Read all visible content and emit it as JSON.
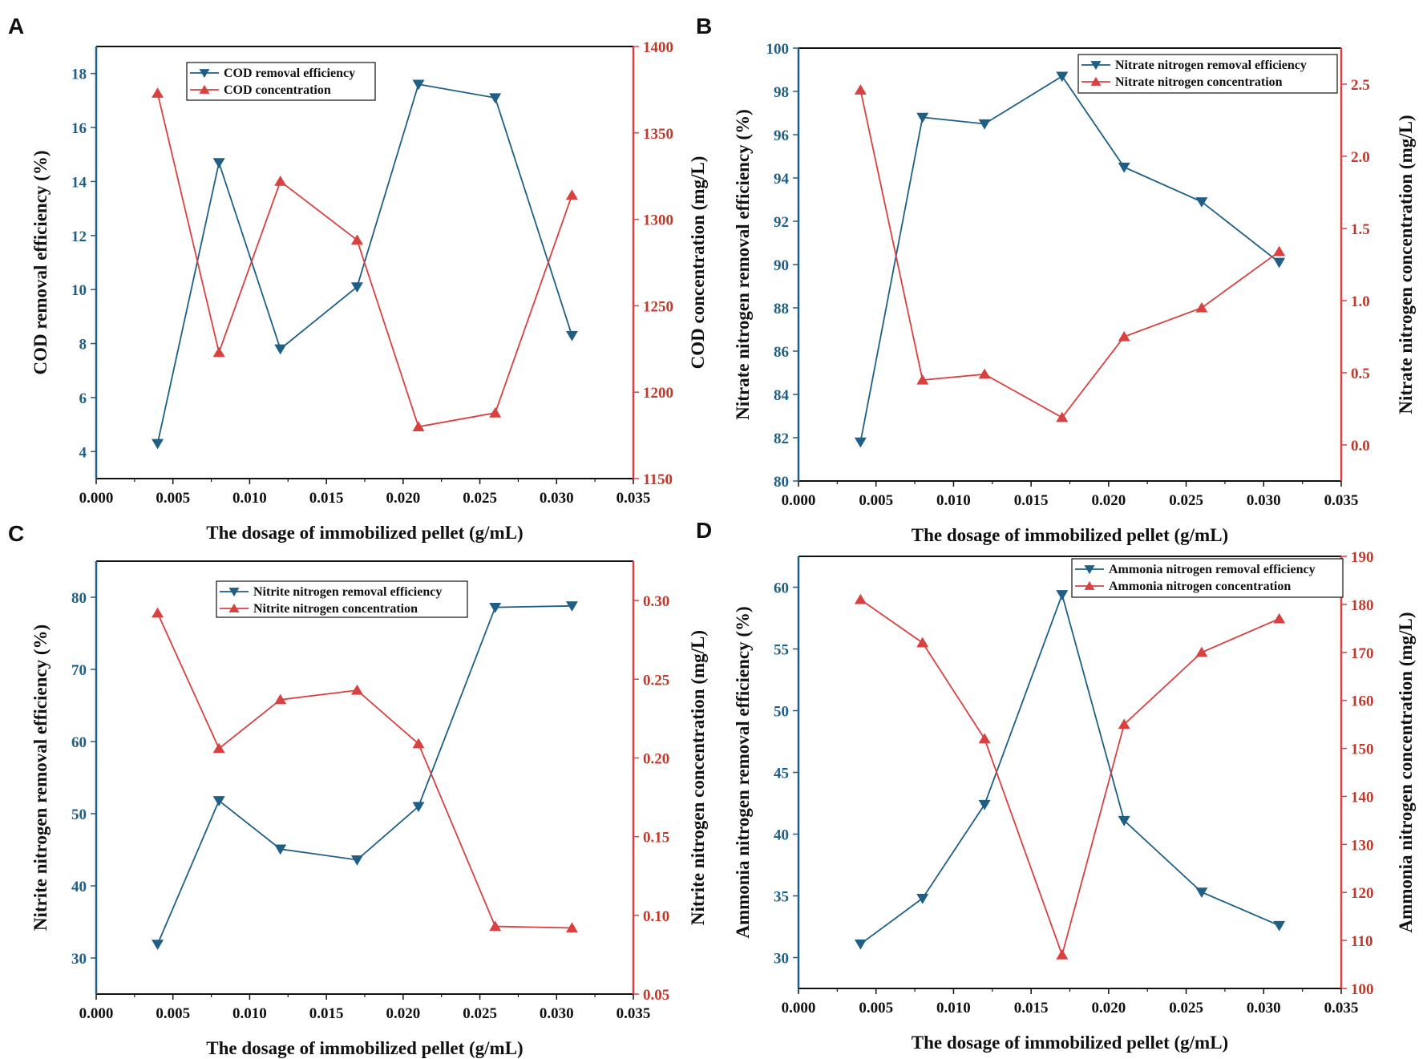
{
  "figure": {
    "colors": {
      "left": "#1f5f86",
      "right": "#d94040",
      "frame": "#111111"
    }
  },
  "chart_data": [
    {
      "panel": "A",
      "type": "line",
      "xlabel": "The dosage of immobilized pellet (g/mL)",
      "ylabel_left": "COD removal efficiency (%)",
      "ylabel_right": "COD concentration (mg/L)",
      "xlim": [
        0,
        0.035
      ],
      "xticks": [
        "0.000",
        "0.005",
        "0.010",
        "0.015",
        "0.020",
        "0.025",
        "0.030",
        "0.035"
      ],
      "ylim_left": [
        3,
        19
      ],
      "yticks_left": [
        "4",
        "6",
        "8",
        "10",
        "12",
        "14",
        "16",
        "18"
      ],
      "ylim_right": [
        1150,
        1400
      ],
      "yticks_right": [
        "1150",
        "1200",
        "1250",
        "1300",
        "1350",
        "1400"
      ],
      "x": [
        0.004,
        0.008,
        0.012,
        0.017,
        0.021,
        0.026,
        0.031
      ],
      "series": [
        {
          "name": "COD removal efficiency",
          "axis": "left",
          "marker": "triangle-down",
          "values": [
            4.3,
            14.7,
            7.8,
            10.1,
            17.6,
            17.1,
            8.3
          ]
        },
        {
          "name": "COD concentration",
          "axis": "right",
          "marker": "triangle-up",
          "values": [
            1373,
            1223,
            1322,
            1288,
            1180,
            1188,
            1314
          ]
        }
      ],
      "legend_position": "top-left"
    },
    {
      "panel": "B",
      "type": "line",
      "xlabel": "The dosage of immobilized pellet (g/mL)",
      "ylabel_left": "Nitrate nitrogen removal efficiency (%)",
      "ylabel_right": "Nitrate nitrogen concentration (mg/L)",
      "xlim": [
        0,
        0.035
      ],
      "xticks": [
        "0.000",
        "0.005",
        "0.010",
        "0.015",
        "0.020",
        "0.025",
        "0.030",
        "0.035"
      ],
      "ylim_left": [
        80,
        100
      ],
      "yticks_left": [
        "80",
        "82",
        "84",
        "86",
        "88",
        "90",
        "92",
        "94",
        "96",
        "98",
        "100"
      ],
      "ylim_right": [
        -0.25,
        2.75
      ],
      "yticks_right": [
        "0.0",
        "0.5",
        "1.0",
        "1.5",
        "2.0",
        "2.5"
      ],
      "x": [
        0.004,
        0.008,
        0.012,
        0.017,
        0.021,
        0.026,
        0.031
      ],
      "series": [
        {
          "name": "Nitrate nitrogen removal efficiency",
          "axis": "left",
          "marker": "triangle-down",
          "values": [
            81.8,
            96.8,
            96.5,
            98.7,
            94.5,
            92.9,
            90.1
          ]
        },
        {
          "name": "Nitrate nitrogen concentration",
          "axis": "right",
          "marker": "triangle-up",
          "values": [
            2.46,
            0.45,
            0.49,
            0.19,
            0.75,
            0.95,
            1.34
          ]
        }
      ],
      "legend_position": "top-right"
    },
    {
      "panel": "C",
      "type": "line",
      "xlabel": "The dosage of immobilized pellet (g/mL)",
      "ylabel_left": "Nitrite nitrogen removal efficiency (%)",
      "ylabel_right": "Nitrite nitrogen concentration (mg/L)",
      "xlim": [
        0,
        0.035
      ],
      "xticks": [
        "0.000",
        "0.005",
        "0.010",
        "0.015",
        "0.020",
        "0.025",
        "0.030",
        "0.035"
      ],
      "ylim_left": [
        25,
        85
      ],
      "yticks_left": [
        "30",
        "40",
        "50",
        "60",
        "70",
        "80"
      ],
      "ylim_right": [
        0.05,
        0.325
      ],
      "yticks_right": [
        "0.05",
        "0.10",
        "0.15",
        "0.20",
        "0.25",
        "0.30"
      ],
      "x": [
        0.004,
        0.008,
        0.012,
        0.017,
        0.021,
        0.026,
        0.031
      ],
      "series": [
        {
          "name": "Nitrite nitrogen removal efficiency",
          "axis": "left",
          "marker": "triangle-down",
          "values": [
            31.9,
            51.8,
            45.1,
            43.6,
            51.0,
            78.6,
            78.8
          ]
        },
        {
          "name": "Nitrite nitrogen concentration",
          "axis": "right",
          "marker": "triangle-up",
          "values": [
            0.292,
            0.206,
            0.237,
            0.243,
            0.209,
            0.093,
            0.092
          ]
        }
      ],
      "legend_position": "top-center"
    },
    {
      "panel": "D",
      "type": "line",
      "xlabel": "The dosage of immobilized pellet (g/mL)",
      "ylabel_left": "Ammonia nitrogen removal efficiency (%)",
      "ylabel_right": "Ammonia nitrogen concentration (mg/L)",
      "xlim": [
        0,
        0.035
      ],
      "xticks": [
        "0.000",
        "0.005",
        "0.010",
        "0.015",
        "0.020",
        "0.025",
        "0.030",
        "0.035"
      ],
      "ylim_left": [
        27.5,
        62.5
      ],
      "yticks_left": [
        "30",
        "35",
        "40",
        "45",
        "50",
        "55",
        "60"
      ],
      "ylim_right": [
        100,
        190
      ],
      "yticks_right": [
        "100",
        "110",
        "120",
        "130",
        "140",
        "150",
        "160",
        "170",
        "180",
        "190"
      ],
      "x": [
        0.004,
        0.008,
        0.012,
        0.017,
        0.021,
        0.026,
        0.031
      ],
      "series": [
        {
          "name": "Ammonia nitrogen removal efficiency",
          "axis": "left",
          "marker": "triangle-down",
          "values": [
            31.1,
            34.8,
            42.4,
            59.4,
            41.1,
            35.3,
            32.6
          ]
        },
        {
          "name": "Ammonia nitrogen concentration",
          "axis": "right",
          "marker": "triangle-up",
          "values": [
            181,
            172,
            152,
            107,
            155,
            170,
            177
          ]
        }
      ],
      "legend_position": "top-right"
    }
  ]
}
